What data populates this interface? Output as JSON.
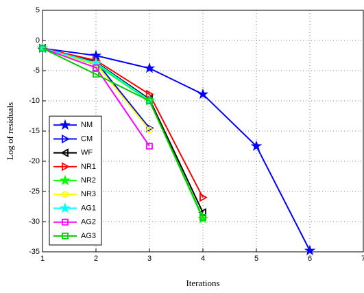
{
  "chart_data": {
    "type": "line",
    "x_label": "Iterations",
    "y_label": "Log of residuals",
    "x": [
      1,
      2,
      3,
      4,
      5,
      6
    ],
    "xlim": [
      1,
      7
    ],
    "xticks": [
      1,
      2,
      3,
      4,
      5,
      6,
      7
    ],
    "ylim": [
      -35,
      5
    ],
    "yticks": [
      -35,
      -30,
      -25,
      -20,
      -15,
      -10,
      -5,
      0,
      5
    ],
    "grid": true,
    "legend": "lower left",
    "series": [
      {
        "name": "NM",
        "color": "#0000ff",
        "marker": "star",
        "values": [
          -1.3,
          -2.5,
          -4.6,
          -8.9,
          -17.5,
          -34.8
        ]
      },
      {
        "name": "CM",
        "color": "#0000ff",
        "marker": "triangle-right",
        "values": [
          -1.3,
          -3.5,
          -14.5,
          null,
          null,
          null
        ]
      },
      {
        "name": "WF",
        "color": "#000000",
        "marker": "triangle-left",
        "values": [
          -1.3,
          -3.6,
          -9.7,
          -28.5,
          null,
          null
        ]
      },
      {
        "name": "NR1",
        "color": "#ff0000",
        "marker": "triangle-right",
        "values": [
          -1.3,
          -3.3,
          -8.9,
          -26,
          null,
          null
        ]
      },
      {
        "name": "NR2",
        "color": "#00ff00",
        "marker": "star",
        "values": [
          -1.3,
          -4,
          -10,
          -29.5,
          null,
          null
        ]
      },
      {
        "name": "NR3",
        "color": "#ffff00",
        "marker": "circle",
        "values": [
          -1.3,
          -3.9,
          -14.8,
          null,
          null,
          null
        ]
      },
      {
        "name": "AG1",
        "color": "#00ffff",
        "marker": "star",
        "values": [
          -1.3,
          -3.7,
          -9.9,
          null,
          null,
          null
        ]
      },
      {
        "name": "AG2",
        "color": "#ff00ff",
        "marker": "square",
        "values": [
          -1.3,
          -4.5,
          -17.5,
          null,
          null,
          null
        ]
      },
      {
        "name": "AG3",
        "color": "#00cc00",
        "marker": "square",
        "values": [
          -1.3,
          -5.6,
          -10,
          -29.3,
          null,
          null
        ]
      }
    ]
  }
}
